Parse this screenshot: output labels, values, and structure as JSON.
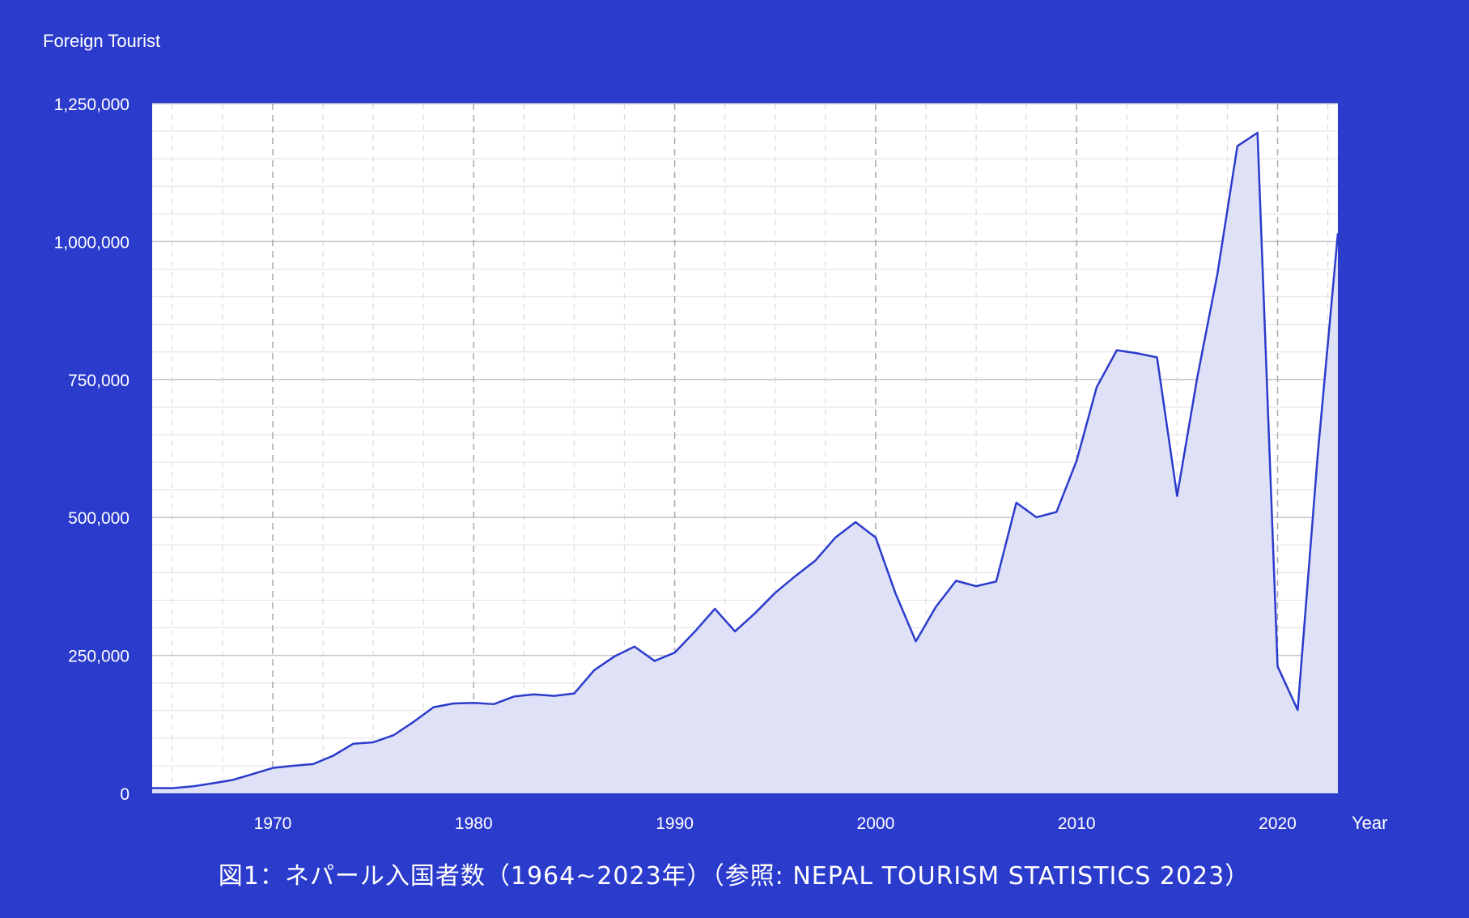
{
  "chart_data": {
    "type": "area",
    "caption": "図1：ネパール入国者数（1964~2023年）（参照: NEPAL TOURISM STATISTICS 2023）",
    "ylabel": "Foreign Tourist",
    "xlabel": "Year",
    "xlim": [
      1964,
      2023
    ],
    "ylim": [
      0,
      1250000
    ],
    "xticks": [
      1970,
      1980,
      1990,
      2000,
      2010,
      2020
    ],
    "xtick_labels": [
      "1970",
      "1980",
      "1990",
      "2000",
      "2010",
      "2020"
    ],
    "yticks": [
      0,
      250000,
      500000,
      750000,
      1000000,
      1250000
    ],
    "ytick_labels": [
      "0",
      "250,000",
      "500,000",
      "750,000",
      "1,000,000",
      "1,250,000"
    ],
    "grid": true,
    "colors": {
      "line": "#2b3bcc",
      "fill": "#dfe1f6",
      "plot_bg": "#ffffff",
      "background": "#2b3bcc"
    },
    "series": [
      {
        "x": [
          1964,
          1965,
          1966,
          1967,
          1968,
          1969,
          1970,
          1971,
          1972,
          1973,
          1974,
          1975,
          1976,
          1977,
          1978,
          1979,
          1980,
          1981,
          1982,
          1983,
          1984,
          1985,
          1986,
          1987,
          1988,
          1989,
          1990,
          1991,
          1992,
          1993,
          1994,
          1995,
          1996,
          1997,
          1998,
          1999,
          2000,
          2001,
          2002,
          2003,
          2004,
          2005,
          2006,
          2007,
          2008,
          2009,
          2010,
          2011,
          2012,
          2013,
          2014,
          2015,
          2016,
          2017,
          2018,
          2019,
          2020,
          2021,
          2022,
          2023
        ],
        "values": [
          9526,
          9388,
          12567,
          18093,
          24209,
          34901,
          45970,
          49914,
          52930,
          68047,
          89838,
          92440,
          105108,
          129329,
          156123,
          162897,
          163997,
          161669,
          175448,
          179405,
          176634,
          180989,
          223331,
          248080,
          265943,
          239945,
          254885,
          292995,
          334353,
          293567,
          326531,
          363395,
          393613,
          421857,
          463684,
          491504,
          463646,
          361237,
          275468,
          338132,
          385297,
          375398,
          383926,
          526705,
          500277,
          509956,
          602867,
          736215,
          803092,
          797616,
          790118,
          538970,
          753002,
          940218,
          1173072,
          1197191,
          230085,
          150962,
          614869,
          1014882
        ]
      }
    ]
  }
}
